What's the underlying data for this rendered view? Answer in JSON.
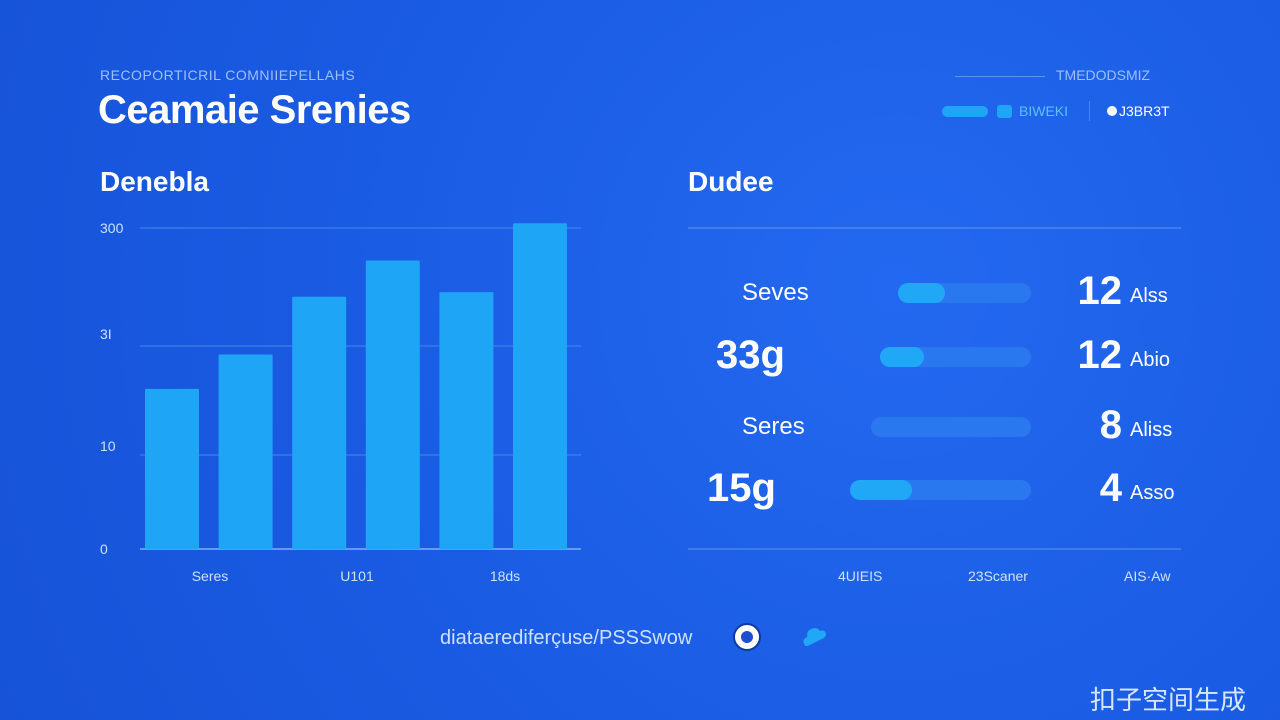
{
  "header": {
    "eyebrow": "RECOPORTICRIL COMNIIEPELLAHS",
    "title": "Ceamaie Srenies",
    "top_right_label": "TMEDODSMIZ",
    "toggle_label": "BIWEKI",
    "dot_label": "J3BR3T"
  },
  "left_panel": {
    "title": "Denebla"
  },
  "right_panel": {
    "title": "Dudee",
    "footer_labels": [
      "4UIEIS",
      "23Scaner",
      "AIS·Aw"
    ],
    "rows": [
      {
        "label": "Seves",
        "label_style": "small",
        "value": "12",
        "unit": "Alss",
        "fill": 0.35
      },
      {
        "label": "33g",
        "label_style": "large",
        "value": "12",
        "unit": "Abio",
        "fill": 0.29
      },
      {
        "label": "Seres",
        "label_style": "small",
        "value": "8",
        "unit": "Aliss",
        "fill": 0.0
      },
      {
        "label": "15g",
        "label_style": "large",
        "value": "4",
        "unit": "Asso",
        "fill": 0.34
      }
    ]
  },
  "footer": {
    "text": "diataerediferçuse/PSSSwow",
    "badge_icon": "crest-logo-icon",
    "cloud_icon": "cloud-icon"
  },
  "watermark": "扣子空间生成",
  "colors": {
    "background": "#1c5ee6",
    "bar": "#1ea5f5",
    "track": "#2a78f0",
    "fill": "#20a8f6",
    "gridline": "#4a86ec"
  },
  "chart_data": [
    {
      "type": "bar",
      "title": "Denebla",
      "ytick_labels": [
        "0",
        "10",
        "3I",
        "300"
      ],
      "xtick_labels": [
        "Seres",
        "U101",
        "18ds"
      ],
      "values": [
        172,
        209,
        271,
        310,
        276,
        350
      ],
      "ylim": [
        0,
        375
      ],
      "grid": true
    }
  ]
}
